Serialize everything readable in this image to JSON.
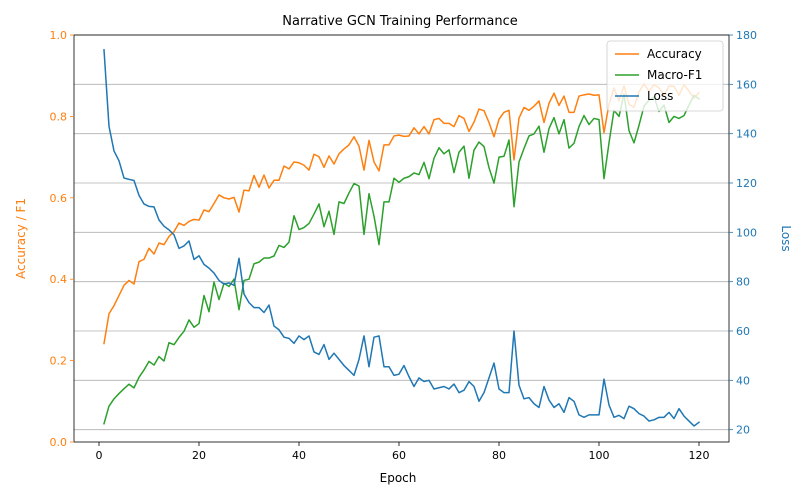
{
  "chart_data": {
    "type": "line",
    "title": "Narrative GCN Training Performance",
    "xlabel": "Epoch",
    "ylabel_left": "Accuracy / F1",
    "ylabel_right": "Loss",
    "xlim": [
      -5,
      126
    ],
    "ylim_left": [
      0.0,
      1.0
    ],
    "ylim_right": [
      15,
      180
    ],
    "x_ticks": [
      0,
      20,
      40,
      60,
      80,
      100,
      120
    ],
    "y_left_ticks": [
      0.0,
      0.2,
      0.4,
      0.6,
      0.8,
      1.0
    ],
    "y_left_tick_labels": [
      "0.0",
      "0.2",
      "0.4",
      "0.6",
      "0.8",
      "1.0"
    ],
    "y_right_ticks": [
      20,
      40,
      60,
      80,
      100,
      120,
      140,
      160,
      180
    ],
    "grid": "horizontal (right axis)",
    "legend_position": "top-right",
    "colors": {
      "accuracy": "#ff7f0e",
      "macro_f1": "#2ca02c",
      "loss": "#1f77b4",
      "left_axis": "#ff7f0e",
      "right_axis": "#1f77b4",
      "grid": "#b0b0b0"
    },
    "series": [
      {
        "name": "Accuracy",
        "axis": "left",
        "color": "#ff7f0e",
        "x": [
          1,
          2,
          3,
          4,
          5,
          6,
          7,
          8,
          9,
          10,
          11,
          12,
          13,
          14,
          15,
          16,
          17,
          18,
          19,
          20,
          21,
          22,
          23,
          24,
          25,
          26,
          27,
          28,
          29,
          30,
          31,
          32,
          33,
          34,
          35,
          36,
          37,
          38,
          39,
          40,
          41,
          42,
          43,
          44,
          45,
          46,
          47,
          48,
          49,
          50,
          51,
          52,
          53,
          54,
          55,
          56,
          57,
          58,
          59,
          60,
          61,
          62,
          63,
          64,
          65,
          66,
          67,
          68,
          69,
          70,
          71,
          72,
          73,
          74,
          75,
          76,
          77,
          78,
          79,
          80,
          81,
          82,
          83,
          84,
          85,
          86,
          87,
          88,
          89,
          90,
          91,
          92,
          93,
          94,
          95,
          96,
          97,
          98,
          99,
          100,
          101,
          102,
          103,
          104,
          105,
          106,
          107,
          108,
          109,
          110,
          111,
          112,
          113,
          114,
          115,
          116,
          117,
          118,
          119,
          120
        ],
        "y": [
          0.242,
          0.315,
          0.335,
          0.36,
          0.385,
          0.397,
          0.388,
          0.443,
          0.449,
          0.476,
          0.462,
          0.489,
          0.485,
          0.505,
          0.517,
          0.538,
          0.532,
          0.542,
          0.547,
          0.545,
          0.57,
          0.566,
          0.586,
          0.607,
          0.6,
          0.597,
          0.601,
          0.565,
          0.619,
          0.617,
          0.655,
          0.626,
          0.656,
          0.624,
          0.643,
          0.643,
          0.678,
          0.671,
          0.688,
          0.686,
          0.68,
          0.668,
          0.707,
          0.701,
          0.675,
          0.703,
          0.683,
          0.708,
          0.72,
          0.73,
          0.75,
          0.727,
          0.668,
          0.741,
          0.688,
          0.666,
          0.73,
          0.73,
          0.752,
          0.754,
          0.751,
          0.752,
          0.772,
          0.757,
          0.775,
          0.757,
          0.792,
          0.795,
          0.783,
          0.783,
          0.775,
          0.802,
          0.795,
          0.763,
          0.786,
          0.818,
          0.814,
          0.785,
          0.75,
          0.793,
          0.81,
          0.815,
          0.693,
          0.796,
          0.822,
          0.815,
          0.825,
          0.838,
          0.785,
          0.832,
          0.857,
          0.827,
          0.85,
          0.81,
          0.81,
          0.85,
          0.853,
          0.855,
          0.852,
          0.853,
          0.76,
          0.83,
          0.87,
          0.838,
          0.875,
          0.83,
          0.822,
          0.86,
          0.88,
          0.862,
          0.878,
          0.87,
          0.852,
          0.875,
          0.874,
          0.852,
          0.878,
          0.862,
          0.845,
          0.858
        ]
      },
      {
        "name": "Macro-F1",
        "axis": "left",
        "color": "#2ca02c",
        "x": [
          1,
          2,
          3,
          4,
          5,
          6,
          7,
          8,
          9,
          10,
          11,
          12,
          13,
          14,
          15,
          16,
          17,
          18,
          19,
          20,
          21,
          22,
          23,
          24,
          25,
          26,
          27,
          28,
          29,
          30,
          31,
          32,
          33,
          34,
          35,
          36,
          37,
          38,
          39,
          40,
          41,
          42,
          43,
          44,
          45,
          46,
          47,
          48,
          49,
          50,
          51,
          52,
          53,
          54,
          55,
          56,
          57,
          58,
          59,
          60,
          61,
          62,
          63,
          64,
          65,
          66,
          67,
          68,
          69,
          70,
          71,
          72,
          73,
          74,
          75,
          76,
          77,
          78,
          79,
          80,
          81,
          82,
          83,
          84,
          85,
          86,
          87,
          88,
          89,
          90,
          91,
          92,
          93,
          94,
          95,
          96,
          97,
          98,
          99,
          100,
          101,
          102,
          103,
          104,
          105,
          106,
          107,
          108,
          109,
          110,
          111,
          112,
          113,
          114,
          115,
          116,
          117,
          118,
          119,
          120
        ],
        "y": [
          0.045,
          0.088,
          0.106,
          0.119,
          0.131,
          0.142,
          0.133,
          0.159,
          0.177,
          0.198,
          0.189,
          0.21,
          0.199,
          0.244,
          0.239,
          0.257,
          0.272,
          0.3,
          0.282,
          0.291,
          0.36,
          0.32,
          0.393,
          0.35,
          0.39,
          0.382,
          0.4,
          0.325,
          0.397,
          0.4,
          0.438,
          0.442,
          0.452,
          0.452,
          0.457,
          0.483,
          0.478,
          0.491,
          0.556,
          0.522,
          0.527,
          0.537,
          0.56,
          0.585,
          0.529,
          0.567,
          0.51,
          0.59,
          0.586,
          0.612,
          0.635,
          0.629,
          0.51,
          0.61,
          0.555,
          0.485,
          0.59,
          0.59,
          0.648,
          0.638,
          0.648,
          0.652,
          0.661,
          0.657,
          0.687,
          0.647,
          0.697,
          0.723,
          0.708,
          0.718,
          0.662,
          0.712,
          0.727,
          0.648,
          0.717,
          0.737,
          0.726,
          0.674,
          0.636,
          0.7,
          0.702,
          0.742,
          0.578,
          0.688,
          0.721,
          0.752,
          0.757,
          0.776,
          0.712,
          0.77,
          0.797,
          0.757,
          0.792,
          0.722,
          0.734,
          0.775,
          0.802,
          0.78,
          0.795,
          0.792,
          0.647,
          0.735,
          0.815,
          0.8,
          0.855,
          0.765,
          0.735,
          0.778,
          0.825,
          0.84,
          0.848,
          0.812,
          0.828,
          0.785,
          0.8,
          0.795,
          0.802,
          0.828,
          0.852,
          0.843
        ]
      },
      {
        "name": "Loss",
        "axis": "right",
        "color": "#1f77b4",
        "x": [
          1,
          2,
          3,
          4,
          5,
          6,
          7,
          8,
          9,
          10,
          11,
          12,
          13,
          14,
          15,
          16,
          17,
          18,
          19,
          20,
          21,
          22,
          23,
          24,
          25,
          26,
          27,
          28,
          29,
          30,
          31,
          32,
          33,
          34,
          35,
          36,
          37,
          38,
          39,
          40,
          41,
          42,
          43,
          44,
          45,
          46,
          47,
          48,
          49,
          50,
          51,
          52,
          53,
          54,
          55,
          56,
          57,
          58,
          59,
          60,
          61,
          62,
          63,
          64,
          65,
          66,
          67,
          68,
          69,
          70,
          71,
          72,
          73,
          74,
          75,
          76,
          77,
          78,
          79,
          80,
          81,
          82,
          83,
          84,
          85,
          86,
          87,
          88,
          89,
          90,
          91,
          92,
          93,
          94,
          95,
          96,
          97,
          98,
          99,
          100,
          101,
          102,
          103,
          104,
          105,
          106,
          107,
          108,
          109,
          110,
          111,
          112,
          113,
          114,
          115,
          116,
          117,
          118,
          119,
          120
        ],
        "y": [
          174,
          143,
          133,
          129,
          122,
          121.5,
          121,
          115,
          111.5,
          110.5,
          110.3,
          105,
          102.5,
          101,
          99,
          93.5,
          94.5,
          96.5,
          89,
          90.5,
          87,
          85.5,
          83.5,
          80.5,
          79,
          79.5,
          78.5,
          89.5,
          75,
          71.5,
          69.5,
          69.5,
          67.5,
          70.5,
          62,
          60.5,
          57.5,
          57,
          55,
          58,
          56.5,
          58,
          51.5,
          50.5,
          54.5,
          48.5,
          51,
          48.5,
          46,
          44,
          42,
          48.5,
          58,
          45.5,
          57.5,
          58,
          45.5,
          45.5,
          42,
          42.5,
          46,
          41.5,
          37.5,
          41,
          39.5,
          40,
          36.5,
          37,
          37.5,
          36.5,
          38.5,
          35,
          36,
          39.5,
          37.5,
          31.5,
          35,
          41,
          47,
          36.5,
          35,
          35,
          60,
          38,
          32.5,
          33,
          30.5,
          29,
          37.5,
          32,
          29,
          30.5,
          27,
          33,
          31.5,
          26,
          25,
          26,
          26,
          26,
          40.5,
          30,
          25,
          25.8,
          24.5,
          29.5,
          28.5,
          26.5,
          25.5,
          23.5,
          24,
          25,
          25,
          27,
          24.5,
          28.5,
          25.5,
          23.5,
          21.5,
          23
        ]
      }
    ]
  }
}
